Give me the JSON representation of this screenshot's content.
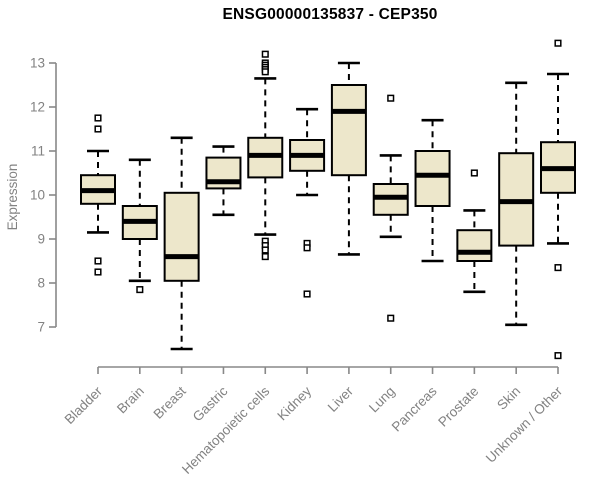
{
  "title": "ENSG00000135837 - CEP350",
  "colors": {
    "box_fill": "#EDE7CB",
    "box_stroke": "#000000",
    "whisker": "#000000",
    "median": "#000000",
    "outlier_stroke": "#000000",
    "outlier_fill": "#ffffff",
    "axis_line": "#888888",
    "tick_label": "#828282",
    "title_color": "#000000",
    "background": "#ffffff"
  },
  "chart_data": {
    "type": "boxplot",
    "title": "ENSG00000135837 - CEP350",
    "xlabel": "",
    "ylabel": "Expression",
    "ylim": [
      6.2,
      13.6
    ],
    "yticks": [
      7,
      8,
      9,
      10,
      11,
      12,
      13
    ],
    "grid": false,
    "legend": "none",
    "categories": [
      "Bladder",
      "Brain",
      "Breast",
      "Gastric",
      "Hematopoietic cells",
      "Kidney",
      "Liver",
      "Lung",
      "Pancreas",
      "Prostate",
      "Skin",
      "Unknown / Other"
    ],
    "series": [
      {
        "name": "Bladder",
        "whisker_low": 9.15,
        "q1": 9.8,
        "median": 10.1,
        "q3": 10.45,
        "whisker_high": 11.0,
        "outliers": [
          11.75,
          11.5,
          8.5,
          8.25
        ]
      },
      {
        "name": "Brain",
        "whisker_low": 8.05,
        "q1": 9.0,
        "median": 9.4,
        "q3": 9.75,
        "whisker_high": 10.8,
        "outliers": [
          7.85
        ]
      },
      {
        "name": "Breast",
        "whisker_low": 6.5,
        "q1": 8.05,
        "median": 8.6,
        "q3": 10.05,
        "whisker_high": 11.3,
        "outliers": []
      },
      {
        "name": "Gastric",
        "whisker_low": 9.55,
        "q1": 10.15,
        "median": 10.3,
        "q3": 10.85,
        "whisker_high": 11.1,
        "outliers": []
      },
      {
        "name": "Hematopoietic cells",
        "whisker_low": 9.1,
        "q1": 10.4,
        "median": 10.9,
        "q3": 11.3,
        "whisker_high": 12.65,
        "outliers": [
          13.2,
          13.0,
          12.95,
          12.9,
          12.85,
          12.8,
          8.95,
          8.85,
          8.75,
          8.6
        ]
      },
      {
        "name": "Kidney",
        "whisker_low": 10.0,
        "q1": 10.55,
        "median": 10.9,
        "q3": 11.25,
        "whisker_high": 11.95,
        "outliers": [
          8.9,
          8.8,
          7.75
        ]
      },
      {
        "name": "Liver",
        "whisker_low": 8.65,
        "q1": 10.45,
        "median": 11.9,
        "q3": 12.5,
        "whisker_high": 13.0,
        "outliers": []
      },
      {
        "name": "Lung",
        "whisker_low": 9.05,
        "q1": 9.55,
        "median": 9.95,
        "q3": 10.25,
        "whisker_high": 10.9,
        "outliers": [
          12.2,
          7.2
        ]
      },
      {
        "name": "Pancreas",
        "whisker_low": 8.5,
        "q1": 9.75,
        "median": 10.45,
        "q3": 11.0,
        "whisker_high": 11.7,
        "outliers": []
      },
      {
        "name": "Prostate",
        "whisker_low": 7.8,
        "q1": 8.5,
        "median": 8.7,
        "q3": 9.2,
        "whisker_high": 9.65,
        "outliers": [
          10.5
        ]
      },
      {
        "name": "Skin",
        "whisker_low": 7.05,
        "q1": 8.85,
        "median": 9.85,
        "q3": 10.95,
        "whisker_high": 12.55,
        "outliers": []
      },
      {
        "name": "Unknown / Other",
        "whisker_low": 8.9,
        "q1": 10.05,
        "median": 10.6,
        "q3": 11.2,
        "whisker_high": 12.75,
        "outliers": [
          13.45,
          8.35,
          6.35
        ]
      }
    ]
  }
}
